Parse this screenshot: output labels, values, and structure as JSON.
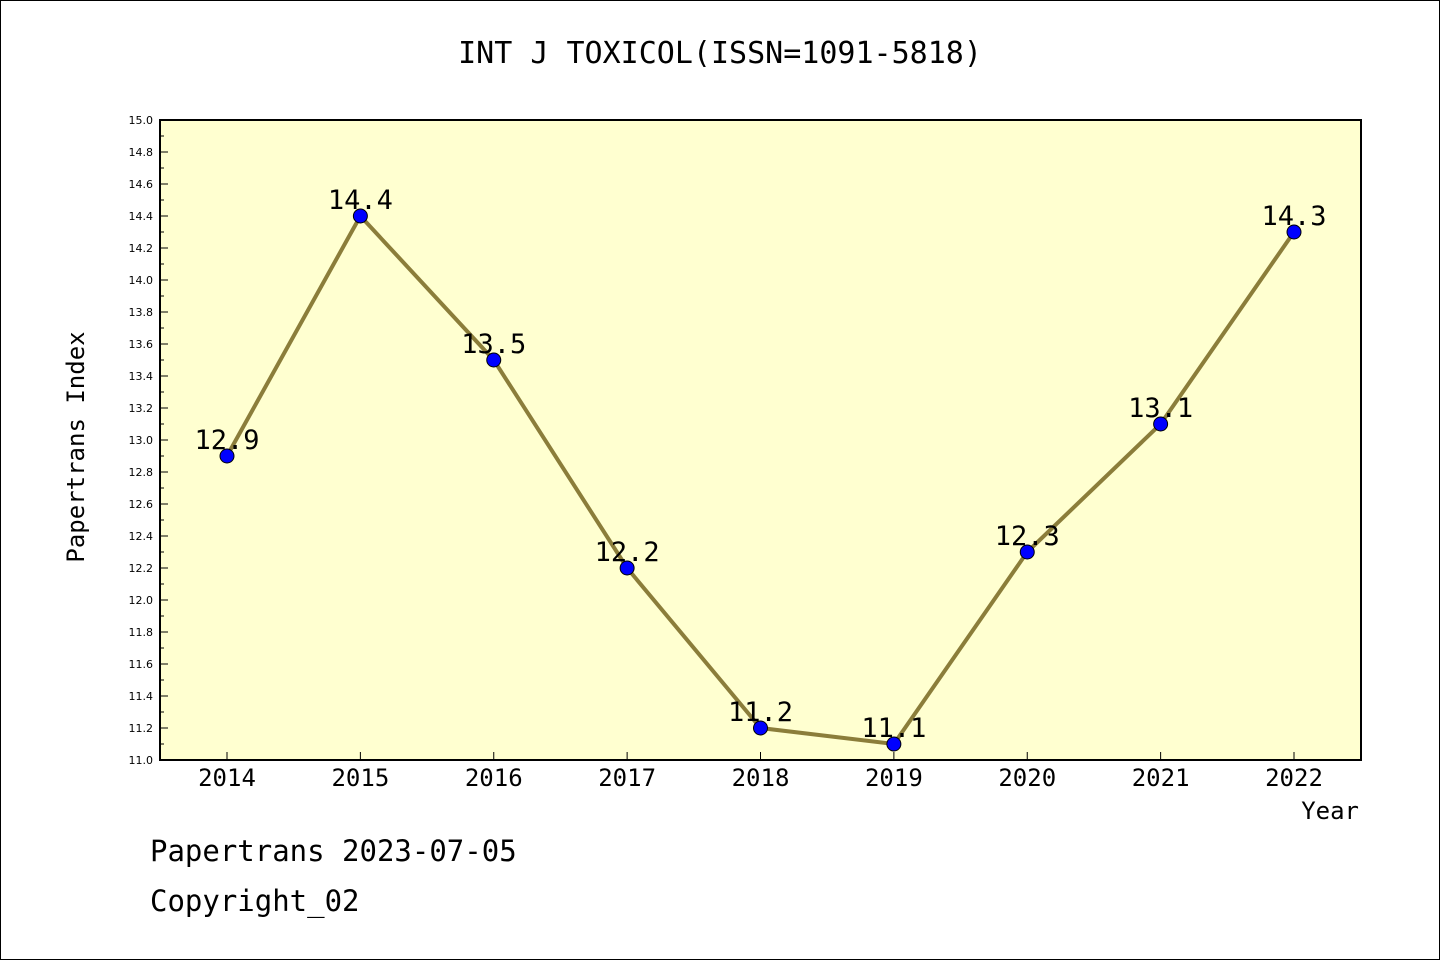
{
  "title": "INT J TOXICOL(ISSN=1091-5818)",
  "footer": {
    "line1": "Papertrans 2023-07-05",
    "line2": "Copyright_02"
  },
  "colors": {
    "plot_background": "#ffffd0",
    "line": "#8b7d3a",
    "marker": "#0000ff"
  },
  "chart_data": {
    "type": "line",
    "x": [
      "2014",
      "2015",
      "2016",
      "2017",
      "2018",
      "2019",
      "2020",
      "2021",
      "2022"
    ],
    "series": [
      {
        "values": [
          12.9,
          14.4,
          13.5,
          12.2,
          11.2,
          11.1,
          12.3,
          13.1,
          14.3
        ]
      }
    ],
    "data_labels": [
      "12.9",
      "14.4",
      "13.5",
      "12.2",
      "11.2",
      "11.1",
      "12.3",
      "13.1",
      "14.3"
    ],
    "xlabel": "Year",
    "ylabel": "Papertrans Index",
    "ylim": [
      11.0,
      15.0
    ],
    "yticks": [
      "11.0",
      "11.2",
      "11.4",
      "11.6",
      "11.8",
      "12.0",
      "12.2",
      "12.4",
      "12.6",
      "12.8",
      "13.0",
      "13.2",
      "13.4",
      "13.6",
      "13.8",
      "14.0",
      "14.2",
      "14.4",
      "14.6",
      "14.8",
      "15.0"
    ],
    "grid": false,
    "legend": "none"
  }
}
